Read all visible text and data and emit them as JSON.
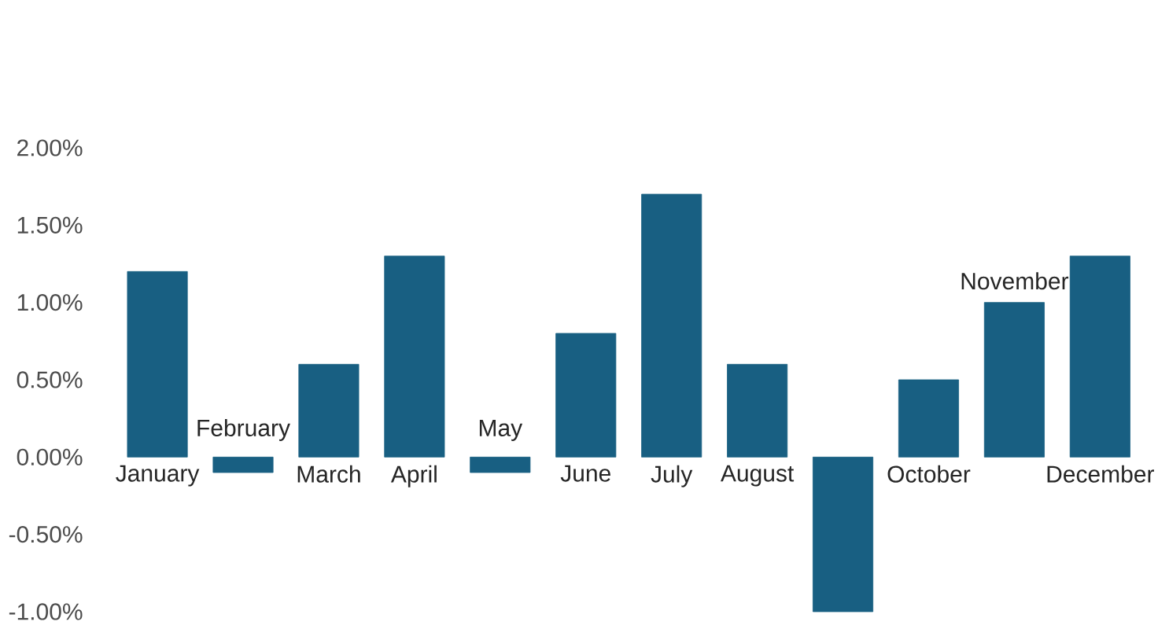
{
  "chart_data": {
    "type": "bar",
    "categories": [
      "January",
      "February",
      "March",
      "April",
      "May",
      "June",
      "July",
      "August",
      null,
      "October",
      "November",
      "December"
    ],
    "values": [
      1.2,
      -0.1,
      0.6,
      1.3,
      -0.1,
      0.8,
      1.7,
      0.6,
      -1.0,
      0.5,
      1.0,
      1.3
    ],
    "color": "#185f82",
    "ylim": [
      -1.0,
      2.0
    ],
    "yticks": [
      {
        "value": -1.0,
        "label": "-1.00%"
      },
      {
        "value": -0.5,
        "label": "-0.50%"
      },
      {
        "value": 0,
        "label": "0.00%"
      },
      {
        "value": 0.5,
        "label": "0.50%"
      },
      {
        "value": 1.0,
        "label": "1.00%"
      },
      {
        "value": 1.5,
        "label": "1.50%"
      },
      {
        "value": 2.0,
        "label": "2.00%"
      }
    ]
  }
}
